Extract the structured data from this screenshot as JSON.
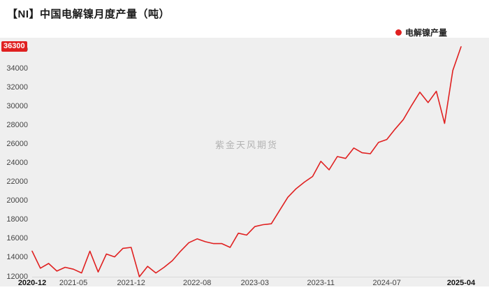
{
  "header": {
    "title": "【NI】中国电解镍月度产量（吨）"
  },
  "legend": {
    "items": [
      {
        "label": "电解镍产量",
        "color": "#e02020"
      }
    ]
  },
  "latest_value_badge": {
    "text": "36300",
    "bg": "#e02020"
  },
  "watermark": "紫金天风期货",
  "chart_data": {
    "type": "line",
    "title": "【NI】中国电解镍月度产量（吨）",
    "xlabel": "",
    "ylabel": "",
    "ylim": [
      12000,
      36300
    ],
    "grid": false,
    "legend_position": "top-right",
    "plot_bg": "#efefef",
    "y_ticks": [
      12000,
      14000,
      16000,
      18000,
      20000,
      22000,
      24000,
      26000,
      28000,
      30000,
      32000,
      34000,
      36000
    ],
    "x_tick_labels": [
      "2020-12",
      "2021-05",
      "2021-12",
      "2022-08",
      "2023-03",
      "2023-11",
      "2024-07",
      "2025-04"
    ],
    "x": [
      "2020-12",
      "2021-01",
      "2021-02",
      "2021-03",
      "2021-04",
      "2021-05",
      "2021-06",
      "2021-07",
      "2021-08",
      "2021-09",
      "2021-10",
      "2021-11",
      "2021-12",
      "2022-01",
      "2022-02",
      "2022-03",
      "2022-04",
      "2022-05",
      "2022-06",
      "2022-07",
      "2022-08",
      "2022-09",
      "2022-10",
      "2022-11",
      "2022-12",
      "2023-01",
      "2023-02",
      "2023-03",
      "2023-04",
      "2023-05",
      "2023-06",
      "2023-07",
      "2023-08",
      "2023-09",
      "2023-10",
      "2023-11",
      "2023-12",
      "2024-01",
      "2024-02",
      "2024-03",
      "2024-04",
      "2024-05",
      "2024-06",
      "2024-07",
      "2024-08",
      "2024-09",
      "2024-10",
      "2024-11",
      "2024-12",
      "2025-01",
      "2025-02",
      "2025-03",
      "2025-04"
    ],
    "series": [
      {
        "name": "电解镍产量",
        "color": "#e02020",
        "values": [
          14700,
          12900,
          13400,
          12600,
          13000,
          12800,
          12400,
          14700,
          12500,
          14400,
          14100,
          15000,
          15100,
          12000,
          13100,
          12400,
          13000,
          13700,
          14700,
          15600,
          16000,
          15700,
          15500,
          15500,
          15100,
          16600,
          16400,
          17300,
          17500,
          17600,
          19000,
          20400,
          21300,
          22000,
          22600,
          24200,
          23300,
          24700,
          24500,
          25600,
          25100,
          25000,
          26200,
          26500,
          27600,
          28600,
          30100,
          31500,
          30400,
          31600,
          28200,
          33800,
          36300
        ]
      }
    ]
  }
}
